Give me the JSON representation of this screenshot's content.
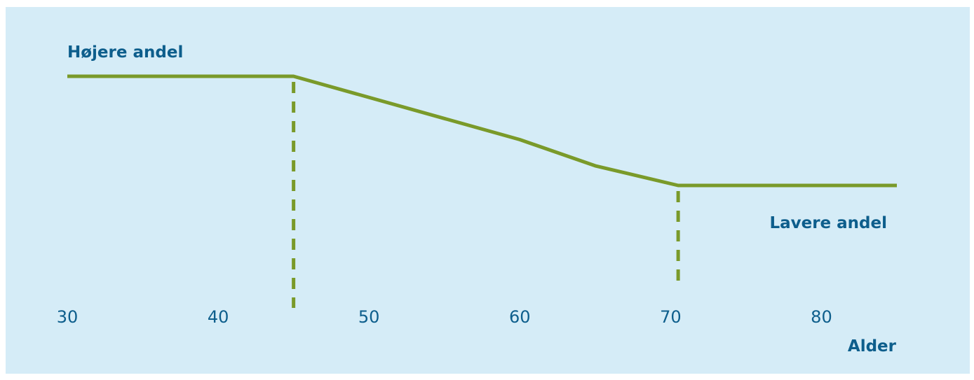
{
  "chart_data": {
    "type": "line",
    "x": [
      30,
      45,
      60,
      65,
      70.5,
      85
    ],
    "y": [
      1.0,
      1.0,
      0.42,
      0.18,
      0.0,
      0.0
    ],
    "xlim": [
      30,
      85
    ],
    "ylim": [
      0,
      1
    ],
    "xticks": [
      "30",
      "40",
      "50",
      "60",
      "70",
      "80"
    ],
    "xlabel": "Alder",
    "top_label": "Højere andel",
    "bottom_label": "Lavere andel",
    "markers": [
      45,
      70.5
    ],
    "grid": false,
    "legend": "none"
  },
  "colors": {
    "line": "#7a9a2a",
    "text": "#0d5e8c",
    "background": "#d5ecf7"
  }
}
